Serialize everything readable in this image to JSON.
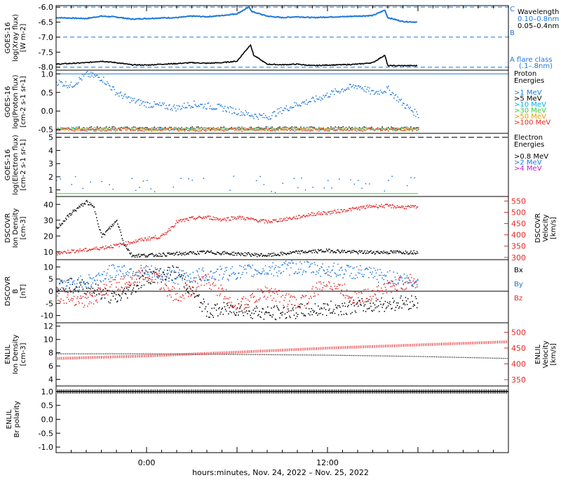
{
  "chart_data": [
    {
      "type": "line",
      "panel": "xray",
      "ylabel": [
        "GOES-16",
        "log(Xray flux)",
        "[W m-2]"
      ],
      "yticks": [
        "-6.0",
        "-6.5",
        "-7.0",
        "-7.5",
        "-8.0"
      ],
      "ylim": [
        -8.1,
        -5.95
      ],
      "xrange_hours": [
        -6,
        24
      ],
      "legend": [
        "Wavelength",
        "0.10–0.8nm",
        "0.05–0.4nm"
      ],
      "flare_class": [
        "C",
        "B",
        "A flare class",
        "(.1–.8nm)"
      ],
      "threshold_lines": [
        -6.0,
        -7.0,
        -8.0
      ],
      "series": [
        {
          "name": "0.10–0.8nm",
          "color": "#1e78dc",
          "x": [
            -6,
            -4,
            -3,
            -2,
            -1,
            0,
            1,
            2,
            3,
            4,
            5,
            6,
            6.8,
            7,
            8,
            9,
            10,
            11,
            12,
            13,
            14,
            15,
            15.8,
            16,
            17,
            18
          ],
          "y": [
            -6.35,
            -6.38,
            -6.3,
            -6.33,
            -6.4,
            -6.38,
            -6.36,
            -6.35,
            -6.3,
            -6.32,
            -6.28,
            -6.22,
            -6.0,
            -6.15,
            -6.3,
            -6.35,
            -6.32,
            -6.35,
            -6.33,
            -6.32,
            -6.3,
            -6.28,
            -6.1,
            -6.35,
            -6.48,
            -6.5
          ]
        },
        {
          "name": "0.05–0.4nm",
          "color": "#000000",
          "x": [
            -6,
            -4,
            -3,
            -2,
            -1,
            0,
            1,
            2,
            3,
            4,
            5,
            6,
            6.9,
            7.1,
            8,
            9,
            10,
            11,
            12,
            13,
            14,
            15,
            15.8,
            16,
            17,
            18
          ],
          "y": [
            -7.9,
            -7.85,
            -7.8,
            -7.85,
            -7.92,
            -7.93,
            -7.9,
            -7.88,
            -7.85,
            -7.87,
            -7.85,
            -7.8,
            -7.25,
            -7.6,
            -7.9,
            -7.92,
            -7.9,
            -7.95,
            -7.93,
            -7.92,
            -7.9,
            -7.85,
            -7.6,
            -7.95,
            -7.95,
            -7.95
          ]
        }
      ]
    },
    {
      "type": "scatter",
      "panel": "proton",
      "ylabel": [
        "GOES-16",
        "log(Proton flux)",
        "[cm-2 s-1 sr-1]"
      ],
      "yticks": [
        "-0.5",
        "0.0",
        "0.5",
        "1.0"
      ],
      "ylim": [
        -0.6,
        1.1
      ],
      "legend_title": [
        "Proton",
        "Energies"
      ],
      "legend": [
        ">1 MeV",
        ">5 MeV",
        ">10 MeV",
        ">30 MeV",
        ">50 MeV",
        ">100 MeV"
      ],
      "series": [
        {
          "name": ">1 MeV",
          "color": "#1e78dc",
          "x": [
            -6,
            -5,
            -4,
            -3,
            -2,
            -1,
            0,
            1,
            2,
            3,
            4,
            5,
            6,
            7,
            8,
            9,
            10,
            11,
            12,
            13,
            14,
            15,
            16,
            17,
            18
          ],
          "y": [
            0.8,
            0.7,
            1.0,
            0.9,
            0.5,
            0.3,
            0.2,
            0.15,
            0.1,
            0.2,
            0.15,
            0.1,
            0.0,
            -0.1,
            -0.15,
            0.05,
            0.2,
            0.3,
            0.45,
            0.6,
            0.7,
            0.5,
            0.6,
            0.2,
            -0.1
          ]
        },
        {
          "name": ">5 MeV",
          "color": "#000000",
          "baseline": -0.45
        },
        {
          "name": ">10 MeV",
          "color": "#00b4e6",
          "baseline": -0.46
        },
        {
          "name": ">30 MeV",
          "color": "#3cc83c",
          "baseline": -0.47
        },
        {
          "name": ">50 MeV",
          "color": "#e6a000",
          "baseline": -0.48
        },
        {
          "name": ">100 MeV",
          "color": "#e62828",
          "baseline": -0.49
        }
      ]
    },
    {
      "type": "scatter",
      "panel": "electron",
      "ylabel": [
        "GOES-16",
        "log(Electron flux)",
        "[cm-2 s-1 sr-1]"
      ],
      "yticks": [
        "1",
        "2",
        "3",
        "4",
        "5"
      ],
      "ylim": [
        0.5,
        5.3
      ],
      "legend_title": [
        "Electron",
        "Energies"
      ],
      "legend": [
        ">0.8 MeV",
        ">2 MeV",
        ">4 MeV"
      ],
      "reference_line": 5.0,
      "series": [
        {
          "name": ">0.8 MeV",
          "color": "#000000"
        },
        {
          "name": ">2 MeV",
          "color": "#1e78dc",
          "approx_range": [
            0.7,
            2.1
          ]
        },
        {
          "name": ">4 MeV",
          "color": "#c81ec8"
        }
      ]
    },
    {
      "type": "scatter",
      "panel": "dscovr_density_velocity",
      "ylabel_left": [
        "DSCOVR",
        "Ion Density",
        "[cm-3]"
      ],
      "ylabel_right": [
        "DSCOVR",
        "Velocity",
        "[km/s]"
      ],
      "yticks_left": [
        "10",
        "20",
        "30",
        "40"
      ],
      "yticks_right": [
        "300",
        "350",
        "400",
        "450",
        "500",
        "550"
      ],
      "ylim_left": [
        5,
        45
      ],
      "ylim_right": [
        290,
        570
      ],
      "series": [
        {
          "name": "Density",
          "axis": "left",
          "color": "#000000",
          "x": [
            -6,
            -5,
            -4,
            -3.5,
            -3,
            -2.5,
            -2,
            -1.5,
            -1,
            0,
            2,
            4,
            6,
            8,
            10,
            12,
            14,
            16,
            18
          ],
          "y": [
            25,
            35,
            42,
            38,
            20,
            25,
            30,
            15,
            8,
            8,
            9,
            10,
            9,
            8,
            10,
            11,
            10,
            10,
            10
          ]
        },
        {
          "name": "Velocity",
          "axis": "right",
          "color": "#e62828",
          "x": [
            -6,
            -5,
            -4,
            -3,
            -2,
            -1,
            0,
            1,
            2,
            3,
            4,
            5,
            6,
            7,
            8,
            9,
            10,
            11,
            12,
            13,
            14,
            15,
            16,
            17,
            18
          ],
          "y": [
            320,
            330,
            335,
            345,
            355,
            370,
            385,
            395,
            460,
            475,
            480,
            470,
            480,
            470,
            460,
            470,
            480,
            495,
            500,
            510,
            520,
            530,
            530,
            525,
            525
          ]
        }
      ]
    },
    {
      "type": "scatter",
      "panel": "dscovr_field",
      "ylabel": [
        "DSCOVR",
        "B",
        "[nT]"
      ],
      "yticks": [
        "-10",
        "-5",
        "0",
        "5",
        "10"
      ],
      "ylim": [
        -13,
        13
      ],
      "zero_line": true,
      "legend": [
        "Bx",
        "By",
        "Bz"
      ],
      "series": [
        {
          "name": "Bx",
          "color": "#000000",
          "x": [
            -6,
            -4,
            -2,
            0,
            2,
            4,
            6,
            8,
            10,
            12,
            14,
            16,
            18
          ],
          "y": [
            3,
            2,
            -3,
            6,
            8,
            -8,
            -7,
            -9,
            -8,
            -7,
            -6,
            -5,
            -4
          ]
        },
        {
          "name": "By",
          "color": "#1e78dc",
          "x": [
            -6,
            -4,
            -2,
            0,
            2,
            4,
            6,
            8,
            10,
            12,
            14,
            16,
            18
          ],
          "y": [
            2,
            4,
            9,
            8,
            6,
            7,
            8,
            9,
            10,
            9,
            8,
            6,
            4
          ]
        },
        {
          "name": "Bz",
          "color": "#e62828",
          "x": [
            -6,
            -4,
            -2,
            0,
            2,
            4,
            6,
            8,
            10,
            12,
            14,
            16,
            18
          ],
          "y": [
            -1,
            -4,
            3,
            8,
            -2,
            5,
            -6,
            0,
            -5,
            4,
            -3,
            2,
            5
          ]
        }
      ]
    },
    {
      "type": "line",
      "panel": "enlil_density_velocity",
      "ylabel_left": [
        "ENLIL",
        "Ion Density",
        "[cm-3]"
      ],
      "ylabel_right": [
        "ENLIL",
        "Velocity",
        "[km/s]"
      ],
      "yticks_left": [
        "4",
        "6",
        "8",
        "10",
        "12"
      ],
      "yticks_right": [
        "350",
        "400",
        "450",
        "500"
      ],
      "ylim_left": [
        3,
        12.5
      ],
      "ylim_right": [
        330,
        530
      ],
      "series": [
        {
          "name": "Density",
          "axis": "left",
          "color": "#000000",
          "x": [
            -6,
            0,
            6,
            12,
            18,
            24
          ],
          "y": [
            7.9,
            7.9,
            7.8,
            7.7,
            7.5,
            7.2
          ]
        },
        {
          "name": "Velocity",
          "axis": "right",
          "color": "#e62828",
          "x": [
            -6,
            0,
            6,
            12,
            18,
            24
          ],
          "y": [
            417,
            425,
            437,
            450,
            460,
            470
          ]
        }
      ]
    },
    {
      "type": "line",
      "panel": "enlil_polarity",
      "ylabel": [
        "ENLIL",
        "Br polarity"
      ],
      "yticks": [
        "-1.0",
        "-0.5",
        "0.0",
        "0.5",
        "1.0"
      ],
      "ylim": [
        -1.2,
        1.2
      ],
      "series": [
        {
          "name": "Br polarity",
          "color": "#000000",
          "x": [
            -6,
            24
          ],
          "y": [
            1.0,
            1.0
          ]
        }
      ]
    }
  ],
  "x_axis": {
    "ticks": [
      "0:00",
      "12:00"
    ],
    "title": "hours:minutes, Nov. 24, 2022 – Nov. 25, 2022"
  }
}
